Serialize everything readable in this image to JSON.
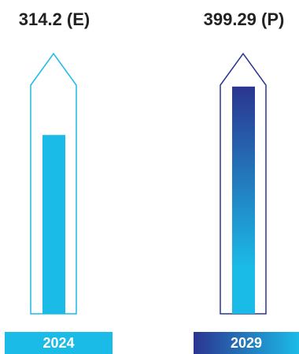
{
  "chart_data": {
    "type": "bar",
    "categories": [
      "2024",
      "2029"
    ],
    "values": [
      314.2,
      399.29
    ],
    "value_labels": [
      "314.2 (E)",
      "399.29 (P)"
    ],
    "colors": {
      "bar_2024": "#1bbbe8",
      "outline_2024": "#1bbbe8",
      "bar_2029_top": "#2b3590",
      "bar_2029_bottom": "#1bbbe8",
      "outline_2029": "#2b3590",
      "label_box_2024": "#1bbbe8",
      "label_box_2029_left": "#2b3590",
      "label_box_2029_right": "#1bbbe8",
      "value_text": "#222222"
    }
  }
}
